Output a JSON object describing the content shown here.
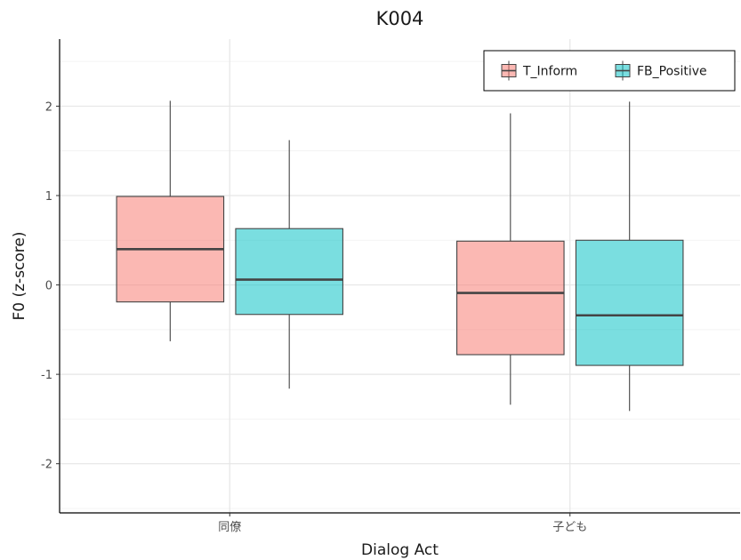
{
  "chart_data": {
    "type": "boxplot",
    "title": "K004",
    "xlabel": "Dialog Act",
    "ylabel": "F0 (z-score)",
    "ylim": [
      -2.55,
      2.75
    ],
    "yticks": [
      -2,
      -1,
      0,
      1,
      2
    ],
    "ytick_labels": [
      "-2",
      "-1",
      "0",
      "1",
      "2"
    ],
    "categories": [
      "同僚",
      "子ども"
    ],
    "grid": true,
    "legend_position": "top-right",
    "series": [
      {
        "name": "T_Inform",
        "color": "#F8766D",
        "boxes": [
          {
            "category": "同僚",
            "whisker_low": -0.63,
            "q1": -0.19,
            "median": 0.4,
            "q3": 0.99,
            "whisker_high": 2.06
          },
          {
            "category": "子ども",
            "whisker_low": -1.34,
            "q1": -0.78,
            "median": -0.09,
            "q3": 0.49,
            "whisker_high": 1.92
          }
        ]
      },
      {
        "name": "FB_Positive",
        "color": "#00BFC4",
        "boxes": [
          {
            "category": "同僚",
            "whisker_low": -1.16,
            "q1": -0.33,
            "median": 0.06,
            "q3": 0.63,
            "whisker_high": 1.62
          },
          {
            "category": "子ども",
            "whisker_low": -1.41,
            "q1": -0.9,
            "median": -0.34,
            "q3": 0.5,
            "whisker_high": 2.05
          }
        ]
      }
    ]
  }
}
